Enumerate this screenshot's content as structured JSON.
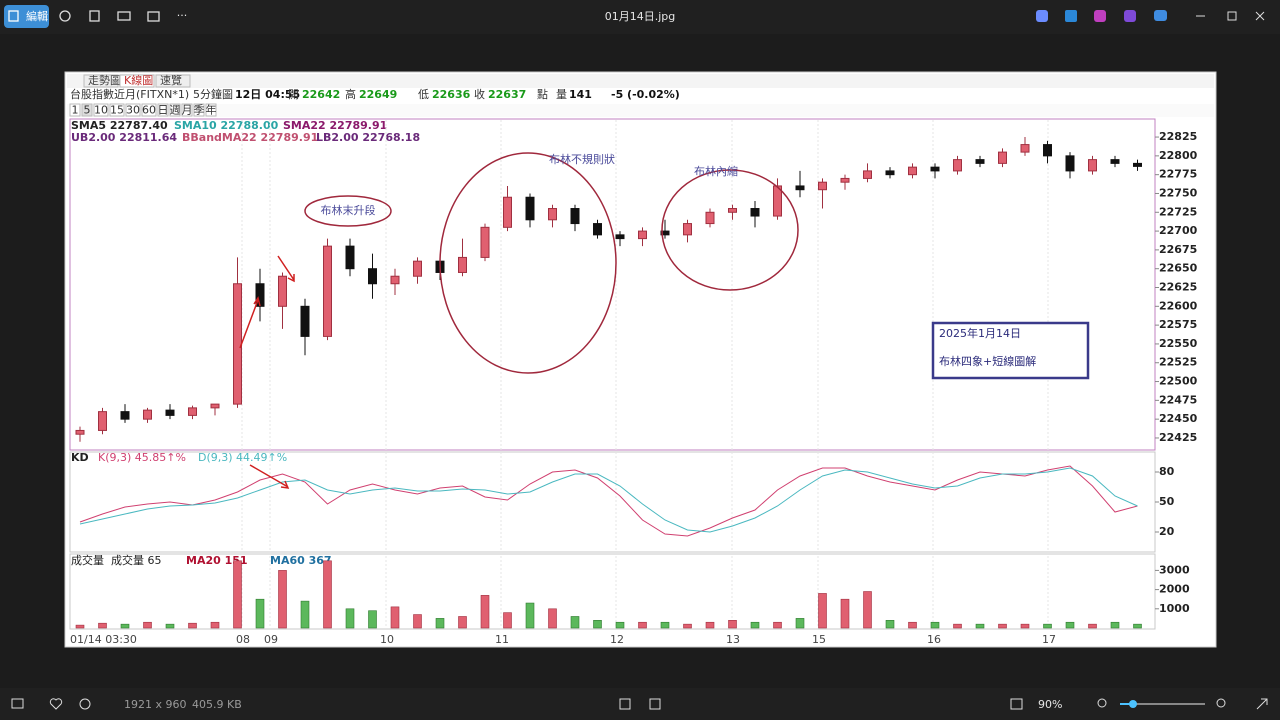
{
  "toolbar": {
    "edit": "編輯",
    "filename": "01月14日.jpg"
  },
  "status": {
    "dimensions": "1921 x 960",
    "size": "405.9 KB",
    "zoom": "90%"
  },
  "chart_data": {
    "type": "candlestick",
    "tabs": [
      "走勢圖",
      "K線圖",
      "速覽"
    ],
    "symbol": "台股指數近月(FITXN*1)",
    "interval": "5分鐘圖",
    "time": "12日 04:55",
    "quote": [
      {
        "label": "開",
        "value": "22642"
      },
      {
        "label": "高",
        "value": "22649"
      },
      {
        "label": "低",
        "value": "22636"
      },
      {
        "label": "收",
        "value": "22637"
      }
    ],
    "unit": "點",
    "volume_label": "量",
    "volume_value": "141",
    "change": "-5 (-0.02%)",
    "periods": [
      "1",
      "5",
      "10",
      "15",
      "30",
      "60",
      "日",
      "週",
      "月",
      "季",
      "年"
    ],
    "legend": [
      {
        "text": "SMA5 22787.40",
        "color": "#222222"
      },
      {
        "text": "SMA10 22788.00",
        "color": "#2aa5a5"
      },
      {
        "text": "SMA22 22789.91",
        "color": "#8b1a6b"
      },
      {
        "text": "UB2.00 22811.64",
        "color": "#6a2a7a"
      },
      {
        "text": "BBandMA22 22789.91",
        "color": "#c05070"
      },
      {
        "text": "LB2.00 22768.18",
        "color": "#6a2a7a"
      }
    ],
    "up_color": "#e06070",
    "down_color": "#111111",
    "price": {
      "ylim": [
        22409,
        22849
      ],
      "yticks": [
        22425,
        22450,
        22475,
        22500,
        22525,
        22550,
        22575,
        22600,
        22625,
        22650,
        22675,
        22700,
        22725,
        22750,
        22775,
        22800,
        22825
      ],
      "candles": [
        {
          "o": 22430,
          "h": 22440,
          "l": 22420,
          "c": 22435
        },
        {
          "o": 22435,
          "h": 22465,
          "l": 22430,
          "c": 22460
        },
        {
          "o": 22460,
          "h": 22470,
          "l": 22445,
          "c": 22450
        },
        {
          "o": 22450,
          "h": 22465,
          "l": 22445,
          "c": 22462
        },
        {
          "o": 22462,
          "h": 22470,
          "l": 22450,
          "c": 22455
        },
        {
          "o": 22455,
          "h": 22468,
          "l": 22450,
          "c": 22465
        },
        {
          "o": 22465,
          "h": 22470,
          "l": 22455,
          "c": 22470
        },
        {
          "o": 22470,
          "h": 22665,
          "l": 22465,
          "c": 22630
        },
        {
          "o": 22630,
          "h": 22650,
          "l": 22580,
          "c": 22600
        },
        {
          "o": 22600,
          "h": 22645,
          "l": 22570,
          "c": 22640
        },
        {
          "o": 22600,
          "h": 22610,
          "l": 22535,
          "c": 22560
        },
        {
          "o": 22560,
          "h": 22690,
          "l": 22555,
          "c": 22680
        },
        {
          "o": 22680,
          "h": 22690,
          "l": 22640,
          "c": 22650
        },
        {
          "o": 22650,
          "h": 22670,
          "l": 22610,
          "c": 22630
        },
        {
          "o": 22630,
          "h": 22650,
          "l": 22615,
          "c": 22640
        },
        {
          "o": 22640,
          "h": 22665,
          "l": 22630,
          "c": 22660
        },
        {
          "o": 22660,
          "h": 22665,
          "l": 22635,
          "c": 22645
        },
        {
          "o": 22645,
          "h": 22690,
          "l": 22640,
          "c": 22665
        },
        {
          "o": 22665,
          "h": 22710,
          "l": 22660,
          "c": 22705
        },
        {
          "o": 22705,
          "h": 22760,
          "l": 22700,
          "c": 22745
        },
        {
          "o": 22745,
          "h": 22750,
          "l": 22705,
          "c": 22715
        },
        {
          "o": 22715,
          "h": 22735,
          "l": 22705,
          "c": 22730
        },
        {
          "o": 22730,
          "h": 22735,
          "l": 22700,
          "c": 22710
        },
        {
          "o": 22710,
          "h": 22715,
          "l": 22690,
          "c": 22695
        },
        {
          "o": 22695,
          "h": 22700,
          "l": 22680,
          "c": 22690
        },
        {
          "o": 22690,
          "h": 22705,
          "l": 22680,
          "c": 22700
        },
        {
          "o": 22700,
          "h": 22715,
          "l": 22690,
          "c": 22695
        },
        {
          "o": 22695,
          "h": 22715,
          "l": 22685,
          "c": 22710
        },
        {
          "o": 22710,
          "h": 22730,
          "l": 22705,
          "c": 22725
        },
        {
          "o": 22725,
          "h": 22735,
          "l": 22715,
          "c": 22730
        },
        {
          "o": 22730,
          "h": 22740,
          "l": 22705,
          "c": 22720
        },
        {
          "o": 22720,
          "h": 22770,
          "l": 22715,
          "c": 22760
        },
        {
          "o": 22760,
          "h": 22780,
          "l": 22745,
          "c": 22755
        },
        {
          "o": 22755,
          "h": 22770,
          "l": 22730,
          "c": 22765
        },
        {
          "o": 22765,
          "h": 22775,
          "l": 22755,
          "c": 22770
        },
        {
          "o": 22770,
          "h": 22790,
          "l": 22765,
          "c": 22780
        },
        {
          "o": 22780,
          "h": 22785,
          "l": 22770,
          "c": 22775
        },
        {
          "o": 22775,
          "h": 22790,
          "l": 22770,
          "c": 22785
        },
        {
          "o": 22785,
          "h": 22790,
          "l": 22770,
          "c": 22780
        },
        {
          "o": 22780,
          "h": 22800,
          "l": 22775,
          "c": 22795
        },
        {
          "o": 22795,
          "h": 22800,
          "l": 22785,
          "c": 22790
        },
        {
          "o": 22790,
          "h": 22810,
          "l": 22785,
          "c": 22805
        },
        {
          "o": 22805,
          "h": 22825,
          "l": 22800,
          "c": 22815
        },
        {
          "o": 22815,
          "h": 22820,
          "l": 22790,
          "c": 22800
        },
        {
          "o": 22800,
          "h": 22805,
          "l": 22770,
          "c": 22780
        },
        {
          "o": 22780,
          "h": 22800,
          "l": 22775,
          "c": 22795
        },
        {
          "o": 22795,
          "h": 22800,
          "l": 22785,
          "c": 22790
        },
        {
          "o": 22790,
          "h": 22795,
          "l": 22780,
          "c": 22786
        }
      ]
    },
    "kd": {
      "title": "KD",
      "ylim": [
        0,
        100
      ],
      "yticks": [
        20,
        50,
        80
      ],
      "series": [
        {
          "name": "K(9,3) 45.85↑%",
          "color": "#d04070",
          "values": [
            30,
            38,
            45,
            48,
            50,
            47,
            52,
            60,
            72,
            78,
            70,
            48,
            62,
            68,
            62,
            58,
            64,
            66,
            55,
            52,
            68,
            80,
            82,
            74,
            56,
            32,
            18,
            16,
            24,
            34,
            42,
            62,
            76,
            84,
            84,
            76,
            70,
            66,
            62,
            72,
            80,
            78,
            76,
            82,
            86,
            66,
            40,
            46
          ]
        },
        {
          "name": "D(9,3) 44.49↑%",
          "color": "#4ab8c0",
          "values": [
            28,
            33,
            38,
            43,
            46,
            47,
            49,
            54,
            62,
            70,
            72,
            62,
            58,
            62,
            64,
            61,
            61,
            63,
            62,
            58,
            60,
            70,
            78,
            78,
            66,
            48,
            32,
            22,
            20,
            26,
            34,
            46,
            62,
            76,
            82,
            80,
            74,
            68,
            64,
            66,
            74,
            78,
            78,
            80,
            84,
            76,
            56,
            46
          ]
        }
      ]
    },
    "volume": {
      "title": "成交量",
      "current": "成交量 65",
      "ma": [
        {
          "text": "MA20 151",
          "color": "#b01030"
        },
        {
          "text": "MA60 367",
          "color": "#2070a0"
        }
      ],
      "ylim": [
        0,
        3750
      ],
      "yticks": [
        1000,
        2000,
        3000
      ],
      "values": [
        150,
        250,
        200,
        300,
        200,
        250,
        300,
        3500,
        1500,
        3000,
        1400,
        3500,
        1000,
        900,
        1100,
        700,
        500,
        600,
        1700,
        800,
        1300,
        1000,
        600,
        400,
        300,
        300,
        300,
        200,
        300,
        400,
        300,
        300,
        500,
        1800,
        1500,
        1900,
        400,
        300,
        300,
        200,
        200,
        200,
        200,
        200,
        300,
        200,
        300,
        200
      ]
    },
    "time_labels": [
      "01/14 03:30",
      "08",
      "09",
      "10",
      "11",
      "12",
      "13",
      "15",
      "16",
      "17"
    ],
    "annotations": [
      "布林末升段",
      "布林不規則狀",
      "布林內縮"
    ],
    "note": [
      "2025年1月14日",
      "布林四象+短線圖解"
    ]
  }
}
